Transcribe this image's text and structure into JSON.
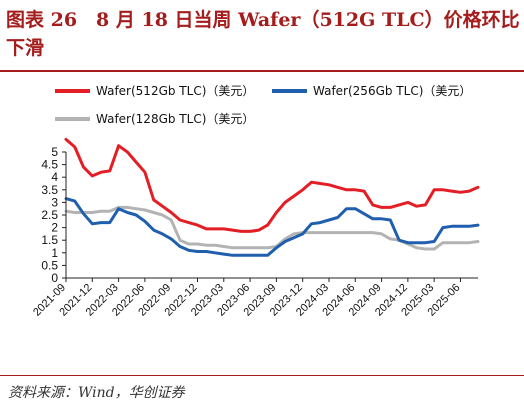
{
  "title": "图表 26　8 月 18 日当周 Wafer（512G TLC）价格环比下滑",
  "source": "资料来源：Wind，华创证券",
  "chart_data": {
    "type": "line",
    "ylim": [
      0,
      5
    ],
    "yticks": [
      "0",
      "0.5",
      "1",
      "1.5",
      "2",
      "2.5",
      "3",
      "3.5",
      "4",
      "4.5",
      "5"
    ],
    "xticks": [
      "2021-09",
      "2021-12",
      "2022-03",
      "2022-06",
      "2022-09",
      "2022-12",
      "2023-03",
      "2023-06",
      "2023-09",
      "2023-12",
      "2024-03",
      "2024-06",
      "2024-09",
      "2024-12",
      "2025-03",
      "2025-06"
    ],
    "x_months": [
      "2021-09",
      "2021-10",
      "2021-11",
      "2021-12",
      "2022-01",
      "2022-02",
      "2022-03",
      "2022-04",
      "2022-05",
      "2022-06",
      "2022-07",
      "2022-08",
      "2022-09",
      "2022-10",
      "2022-11",
      "2022-12",
      "2023-01",
      "2023-02",
      "2023-03",
      "2023-04",
      "2023-05",
      "2023-06",
      "2023-07",
      "2023-08",
      "2023-09",
      "2023-10",
      "2023-11",
      "2023-12",
      "2024-01",
      "2024-02",
      "2024-03",
      "2024-04",
      "2024-05",
      "2024-06",
      "2024-07",
      "2024-08",
      "2024-09",
      "2024-10",
      "2024-11",
      "2024-12",
      "2025-01",
      "2025-02",
      "2025-03",
      "2025-04",
      "2025-05",
      "2025-06",
      "2025-07",
      "2025-08"
    ],
    "series": [
      {
        "name": "Wafer(512Gb TLC)（美元）",
        "color": "#e31e24",
        "values": [
          5.5,
          5.2,
          4.4,
          4.05,
          4.2,
          4.25,
          5.25,
          5.0,
          4.6,
          4.2,
          3.1,
          2.85,
          2.6,
          2.3,
          2.2,
          2.1,
          1.95,
          1.95,
          1.95,
          1.9,
          1.85,
          1.85,
          1.9,
          2.1,
          2.6,
          3.0,
          3.25,
          3.5,
          3.8,
          3.75,
          3.7,
          3.6,
          3.5,
          3.5,
          3.45,
          2.9,
          2.8,
          2.8,
          2.9,
          3.0,
          2.85,
          2.9,
          3.5,
          3.5,
          3.45,
          3.4,
          3.45,
          3.6
        ]
      },
      {
        "name": "Wafer(256Gb TLC)（美元）",
        "color": "#1f5fae",
        "values": [
          3.15,
          3.05,
          2.55,
          2.15,
          2.2,
          2.2,
          2.75,
          2.6,
          2.5,
          2.25,
          1.9,
          1.75,
          1.55,
          1.25,
          1.1,
          1.05,
          1.05,
          1.0,
          0.95,
          0.9,
          0.9,
          0.9,
          0.9,
          0.9,
          1.2,
          1.45,
          1.6,
          1.75,
          2.15,
          2.2,
          2.3,
          2.4,
          2.75,
          2.75,
          2.55,
          2.35,
          2.35,
          2.3,
          1.5,
          1.4,
          1.4,
          1.4,
          1.45,
          2.0,
          2.05,
          2.05,
          2.05,
          2.1
        ]
      },
      {
        "name": "Wafer(128Gb TLC)（美元）",
        "color": "#b3b3b3",
        "values": [
          2.65,
          2.6,
          2.6,
          2.6,
          2.65,
          2.65,
          2.8,
          2.8,
          2.75,
          2.7,
          2.6,
          2.5,
          2.3,
          1.5,
          1.35,
          1.35,
          1.3,
          1.3,
          1.25,
          1.2,
          1.2,
          1.2,
          1.2,
          1.2,
          1.25,
          1.55,
          1.75,
          1.8,
          1.8,
          1.8,
          1.8,
          1.8,
          1.8,
          1.8,
          1.8,
          1.8,
          1.75,
          1.55,
          1.5,
          1.35,
          1.2,
          1.15,
          1.15,
          1.4,
          1.4,
          1.4,
          1.4,
          1.45
        ]
      }
    ]
  }
}
